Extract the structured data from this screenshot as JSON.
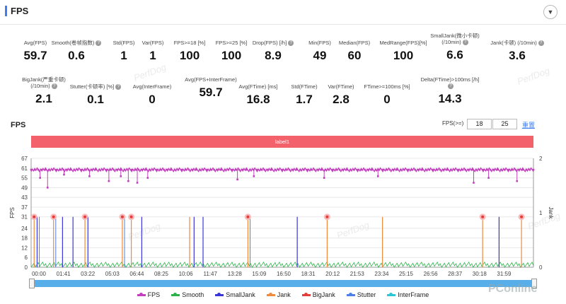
{
  "header": {
    "title": "FPS",
    "collapse_icon": "▼"
  },
  "stats_row1": [
    {
      "label": "Avg(FPS)",
      "value": "59.7",
      "help": false
    },
    {
      "label": "Smooth(卷帧指数)",
      "value": "0.6",
      "help": true
    },
    {
      "label": "Std(FPS)",
      "value": "1",
      "help": false
    },
    {
      "label": "Var(FPS)",
      "value": "1",
      "help": false
    },
    {
      "label": "FPS>=18 [%]",
      "value": "100",
      "help": false
    },
    {
      "label": "FPS>=25 [%]",
      "value": "100",
      "help": false
    },
    {
      "label": "Drop(FPS) [/h]",
      "value": "8.9",
      "help": true
    },
    {
      "label": "Min(FPS)",
      "value": "49",
      "help": false
    },
    {
      "label": "Median(FPS)",
      "value": "60",
      "help": false
    },
    {
      "label": "MedRange(FPS)[%]",
      "value": "100",
      "help": false
    },
    {
      "label": "SmallJank(微小卡顿) (/10min)",
      "value": "6.6",
      "help": true
    },
    {
      "label": "Jank(卡顿) (/10min)",
      "value": "3.6",
      "help": true
    }
  ],
  "stats_row2": [
    {
      "label": "BigJank(严重卡顿) (/10min)",
      "value": "2.1",
      "help": true
    },
    {
      "label": "Stutter(卡顿率) [%]",
      "value": "0.1",
      "help": true
    },
    {
      "label": "Avg(InterFrame)",
      "value": "0",
      "help": false
    },
    {
      "label": "Avg(FPS+InterFrame)",
      "value": "59.7",
      "help": false
    },
    {
      "label": "Avg(FTime) [ms]",
      "value": "16.8",
      "help": false
    },
    {
      "label": "Std(FTime)",
      "value": "1.7",
      "help": false
    },
    {
      "label": "Var(FTime)",
      "value": "2.8",
      "help": false
    },
    {
      "label": "FTime>=100ms [%]",
      "value": "0",
      "help": false
    },
    {
      "label": "Delta(FTime)>100ms [/h]",
      "value": "14.3",
      "help": true
    }
  ],
  "watermark": "PerfDog",
  "chart_section": {
    "title": "FPS",
    "threshold_label": "FPS(>=)",
    "threshold_1": "18",
    "threshold_2": "25",
    "reset_label": "重置",
    "band_label": "label1"
  },
  "chart_data": {
    "type": "line",
    "title": "",
    "y_left_label": "FPS",
    "y_right_label": "Jank",
    "y_left_ticks": [
      0,
      6,
      12,
      18,
      24,
      31,
      37,
      43,
      49,
      55,
      61,
      67
    ],
    "y_right_ticks": [
      0,
      1,
      2
    ],
    "ylim_left": [
      0,
      67
    ],
    "ylim_right": [
      0,
      2
    ],
    "x_ticks": [
      "00:00",
      "01:41",
      "03:22",
      "05:03",
      "06:44",
      "08:25",
      "10:06",
      "11:47",
      "13:28",
      "15:09",
      "16:50",
      "18:31",
      "20:12",
      "21:53",
      "23:34",
      "25:15",
      "26:56",
      "28:37",
      "30:18",
      "31:59"
    ],
    "duration_min": 33.6,
    "fps_baseline": 60,
    "fps_dips": [
      [
        0.6,
        55
      ],
      [
        1.1,
        49
      ],
      [
        2.2,
        57
      ],
      [
        3.9,
        56
      ],
      [
        5.2,
        53
      ],
      [
        6.0,
        56
      ],
      [
        6.5,
        53
      ],
      [
        7.1,
        52
      ],
      [
        7.8,
        55
      ],
      [
        13.8,
        54
      ],
      [
        14.9,
        56
      ],
      [
        19.6,
        55
      ],
      [
        23.2,
        56
      ],
      [
        29.6,
        52
      ],
      [
        30.6,
        55
      ],
      [
        32.5,
        53
      ]
    ],
    "bigjank_times": [
      0.2,
      1.5,
      3.6,
      6.1,
      6.7,
      14.5,
      19.8,
      30.2,
      32.8
    ],
    "jank_times": [
      0.2,
      1.5,
      3.6,
      6.1,
      6.7,
      10.6,
      14.5,
      19.8,
      23.5,
      30.2,
      32.8
    ],
    "smalljank_times": [
      0.4,
      2.1,
      2.8,
      3.8,
      7.4,
      10.9,
      11.5,
      17.8,
      31.3
    ],
    "stutter_times": [
      0.5,
      1.6,
      6.2,
      14.6
    ],
    "series": [
      {
        "name": "FPS",
        "color": "#c23fbd"
      },
      {
        "name": "Smooth",
        "color": "#2bb34a"
      },
      {
        "name": "SmallJank",
        "color": "#3936d8"
      },
      {
        "name": "Jank",
        "color": "#f08a3c"
      },
      {
        "name": "BigJank",
        "color": "#e53b3b"
      },
      {
        "name": "Stutter",
        "color": "#4d80e8"
      },
      {
        "name": "InterFrame",
        "color": "#2ec5d6"
      }
    ]
  },
  "brand": "PConline"
}
